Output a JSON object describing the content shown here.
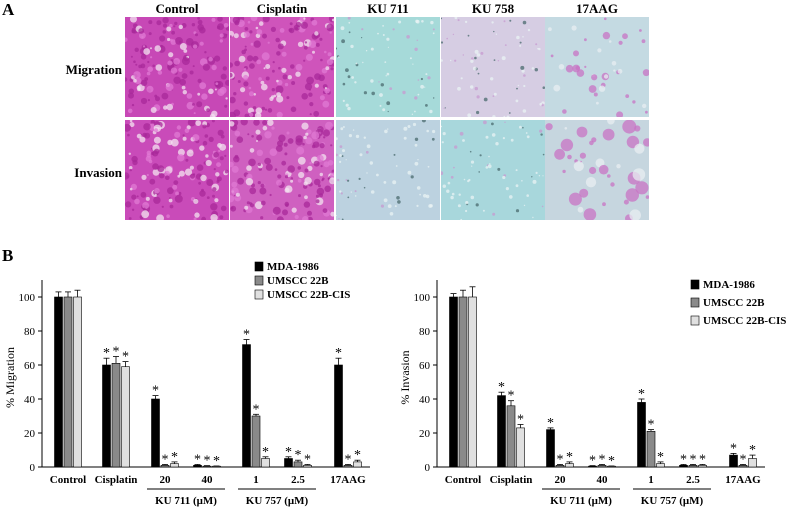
{
  "panel_a": {
    "letter": "A",
    "columns": [
      "Control",
      "Cisplatin",
      "KU 711",
      "KU 758",
      "17AAG"
    ],
    "rows": [
      "Migration",
      "Invasion"
    ],
    "tiles": [
      [
        "#c748b6",
        "#cf54bb",
        "#a6dad9",
        "#d6cde3",
        "#c4dae2"
      ],
      [
        "#c94bb9",
        "#cf60c0",
        "#bcd2e0",
        "#a8d7dc",
        "#c6d6df"
      ]
    ],
    "colors": {
      "stain": "#c940b5",
      "background_blue": "#a9dcdb"
    }
  },
  "panel_b": {
    "letter": "B"
  },
  "chart_data": [
    {
      "type": "bar",
      "ylabel": "% Migration",
      "ylim": [
        0,
        100
      ],
      "yticks": [
        0,
        20,
        40,
        60,
        80,
        100
      ],
      "categories": [
        "Control",
        "Cisplatin",
        "20",
        "40",
        "1",
        "2.5",
        "17AAG"
      ],
      "group_labels": [
        {
          "text": "KU 711 (μM)",
          "span": [
            2,
            3
          ]
        },
        {
          "text": "KU 757 (μM)",
          "span": [
            4,
            5
          ]
        }
      ],
      "legend_position": "top-right",
      "series": [
        {
          "name": "MDA-1986",
          "color": "#000000",
          "values": [
            100,
            60,
            40,
            1,
            72,
            5,
            60
          ],
          "errors": [
            3,
            4,
            2,
            0.5,
            3,
            1,
            4
          ],
          "sig": [
            false,
            true,
            true,
            true,
            true,
            true,
            true
          ]
        },
        {
          "name": "UMSCC 22B",
          "color": "#8a8a8a",
          "values": [
            100,
            61,
            1,
            0.5,
            30,
            3,
            1
          ],
          "errors": [
            3,
            4,
            0.5,
            0.3,
            1,
            1,
            0.5
          ],
          "sig": [
            false,
            true,
            true,
            true,
            true,
            true,
            true
          ]
        },
        {
          "name": "UMSCC 22B-CIS",
          "color": "#e0e0e0",
          "values": [
            100,
            59,
            2,
            0.3,
            5,
            1,
            3
          ],
          "errors": [
            4,
            3,
            1,
            0.3,
            1,
            0.5,
            1
          ],
          "sig": [
            false,
            true,
            true,
            true,
            true,
            true,
            true
          ]
        }
      ],
      "sig_marker": "*"
    },
    {
      "type": "bar",
      "ylabel": "% Invasion",
      "ylim": [
        0,
        100
      ],
      "yticks": [
        0,
        20,
        40,
        60,
        80,
        100
      ],
      "categories": [
        "Control",
        "Cisplatin",
        "20",
        "40",
        "1",
        "2.5",
        "17AAG"
      ],
      "group_labels": [
        {
          "text": "KU 711 (μM)",
          "span": [
            2,
            3
          ]
        },
        {
          "text": "KU 757 (μM)",
          "span": [
            4,
            5
          ]
        }
      ],
      "legend_position": "top-right",
      "series": [
        {
          "name": "MDA-1986",
          "color": "#000000",
          "values": [
            100,
            42,
            22,
            0.5,
            38,
            1,
            7
          ],
          "errors": [
            2,
            2,
            1,
            0.3,
            2,
            0.5,
            1
          ],
          "sig": [
            false,
            true,
            true,
            true,
            true,
            true,
            true
          ]
        },
        {
          "name": "UMSCC 22B",
          "color": "#8a8a8a",
          "values": [
            100,
            36,
            1,
            1,
            21,
            1,
            1
          ],
          "errors": [
            4,
            3,
            0.5,
            0.5,
            1,
            0.5,
            0.5
          ],
          "sig": [
            false,
            true,
            true,
            true,
            true,
            true,
            true
          ]
        },
        {
          "name": "UMSCC 22B-CIS",
          "color": "#e0e0e0",
          "values": [
            100,
            23,
            2,
            0.3,
            2,
            1,
            5
          ],
          "errors": [
            6,
            2,
            1,
            0.3,
            1,
            0.5,
            2
          ],
          "sig": [
            false,
            true,
            true,
            true,
            true,
            true,
            true
          ]
        }
      ],
      "sig_marker": "*"
    }
  ]
}
